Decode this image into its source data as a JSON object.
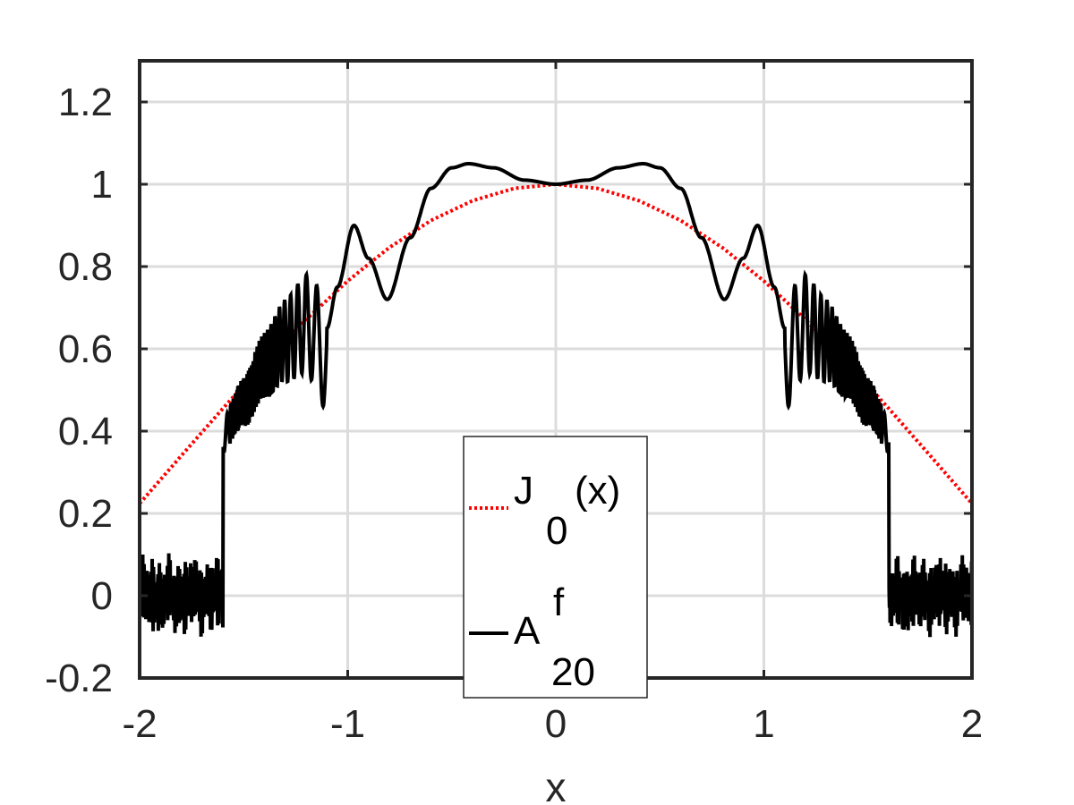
{
  "chart_data": {
    "type": "line",
    "title": "",
    "xlabel": "x",
    "ylabel": "",
    "xlim": [
      -2,
      2
    ],
    "ylim": [
      -0.2,
      1.3
    ],
    "xticks": [
      -2,
      -1,
      0,
      1,
      2
    ],
    "xtick_labels": [
      "-2",
      "-1",
      "0",
      "1",
      "2"
    ],
    "yticks": [
      -0.2,
      0,
      0.2,
      0.4,
      0.6,
      0.8,
      1,
      1.2
    ],
    "ytick_labels": [
      "-0.2",
      "0",
      "0.2",
      "0.4",
      "0.6",
      "0.8",
      "1",
      "1.2"
    ],
    "grid": true,
    "legend_position": "bottom-center",
    "legend": [
      {
        "main": "J",
        "sub": "0",
        "tail": "(x)",
        "sup": ""
      },
      {
        "main": "A",
        "sub": "20",
        "tail": "",
        "sup": "f"
      }
    ],
    "series": [
      {
        "name": "J0(x)",
        "color": "#ff0000",
        "style": "dotted",
        "x": [
          -2.0,
          -1.8,
          -1.6,
          -1.4,
          -1.2,
          -1.0,
          -0.8,
          -0.6,
          -0.4,
          -0.2,
          0.0,
          0.2,
          0.4,
          0.6,
          0.8,
          1.0,
          1.2,
          1.4,
          1.6,
          1.8,
          2.0
        ],
        "y": [
          0.224,
          0.34,
          0.455,
          0.567,
          0.671,
          0.765,
          0.846,
          0.912,
          0.96,
          0.99,
          1.0,
          0.99,
          0.96,
          0.912,
          0.846,
          0.765,
          0.671,
          0.567,
          0.455,
          0.34,
          0.224
        ]
      },
      {
        "name": "A20f",
        "color": "#000000",
        "style": "solid",
        "x": [
          -2.0,
          -1.6,
          -1.6,
          -1.5,
          -1.4,
          -1.3,
          -1.2,
          -1.1,
          -1.05,
          -0.97,
          -0.9,
          -0.81,
          -0.7,
          -0.6,
          -0.5,
          -0.42,
          -0.3,
          -0.15,
          0.0,
          0.15,
          0.3,
          0.42,
          0.5,
          0.6,
          0.7,
          0.81,
          0.9,
          0.97,
          1.05,
          1.1,
          1.2,
          1.3,
          1.4,
          1.5,
          1.6,
          1.6,
          2.0
        ],
        "y": [
          0.0,
          0.0,
          0.45,
          0.53,
          0.62,
          0.68,
          0.72,
          0.65,
          0.75,
          0.9,
          0.82,
          0.72,
          0.87,
          0.99,
          1.04,
          1.05,
          1.04,
          1.01,
          1.0,
          1.01,
          1.04,
          1.05,
          1.04,
          0.99,
          0.87,
          0.72,
          0.82,
          0.9,
          0.75,
          0.65,
          0.72,
          0.68,
          0.62,
          0.53,
          0.45,
          0.0,
          0.0
        ]
      }
    ]
  }
}
